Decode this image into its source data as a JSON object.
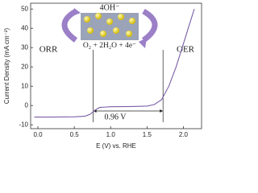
{
  "chart_data": {
    "type": "line",
    "x_label": "E (V) vs. RHE",
    "y_label": "Current Density (mA cm⁻²)",
    "x": [
      -0.05,
      0.2,
      0.5,
      0.65,
      0.72,
      0.78,
      0.85,
      1.0,
      1.3,
      1.5,
      1.6,
      1.7,
      1.8,
      1.9,
      2.0,
      2.1,
      2.15
    ],
    "series": [
      {
        "color": "#7b5ea7",
        "values": [
          -6,
          -6,
          -5.9,
          -5.5,
          -4.5,
          -2.5,
          -1,
          -0.6,
          -0.5,
          -0.3,
          0.5,
          3,
          10,
          20,
          32,
          44,
          50
        ]
      }
    ],
    "xlim": [
      -0.1,
      2.25
    ],
    "ylim": [
      -12,
      53
    ],
    "xticks": [
      {
        "value": 0,
        "label": "0.0"
      },
      {
        "value": 0.5,
        "label": "0.5"
      },
      {
        "value": 1,
        "label": "1.0"
      },
      {
        "value": 1.5,
        "label": "1.5"
      },
      {
        "value": 2,
        "label": "2.0"
      }
    ],
    "yticks": [
      -10,
      0,
      10,
      20,
      30,
      40,
      50
    ],
    "vlines": [
      0.76,
      1.72
    ],
    "annotations": {
      "orr": "ORR",
      "oer": "OER",
      "hydroxide": "4OH⁻",
      "reaction": "O₂ + 2H₂O + 4e⁻",
      "gap": "0.96 V"
    }
  }
}
